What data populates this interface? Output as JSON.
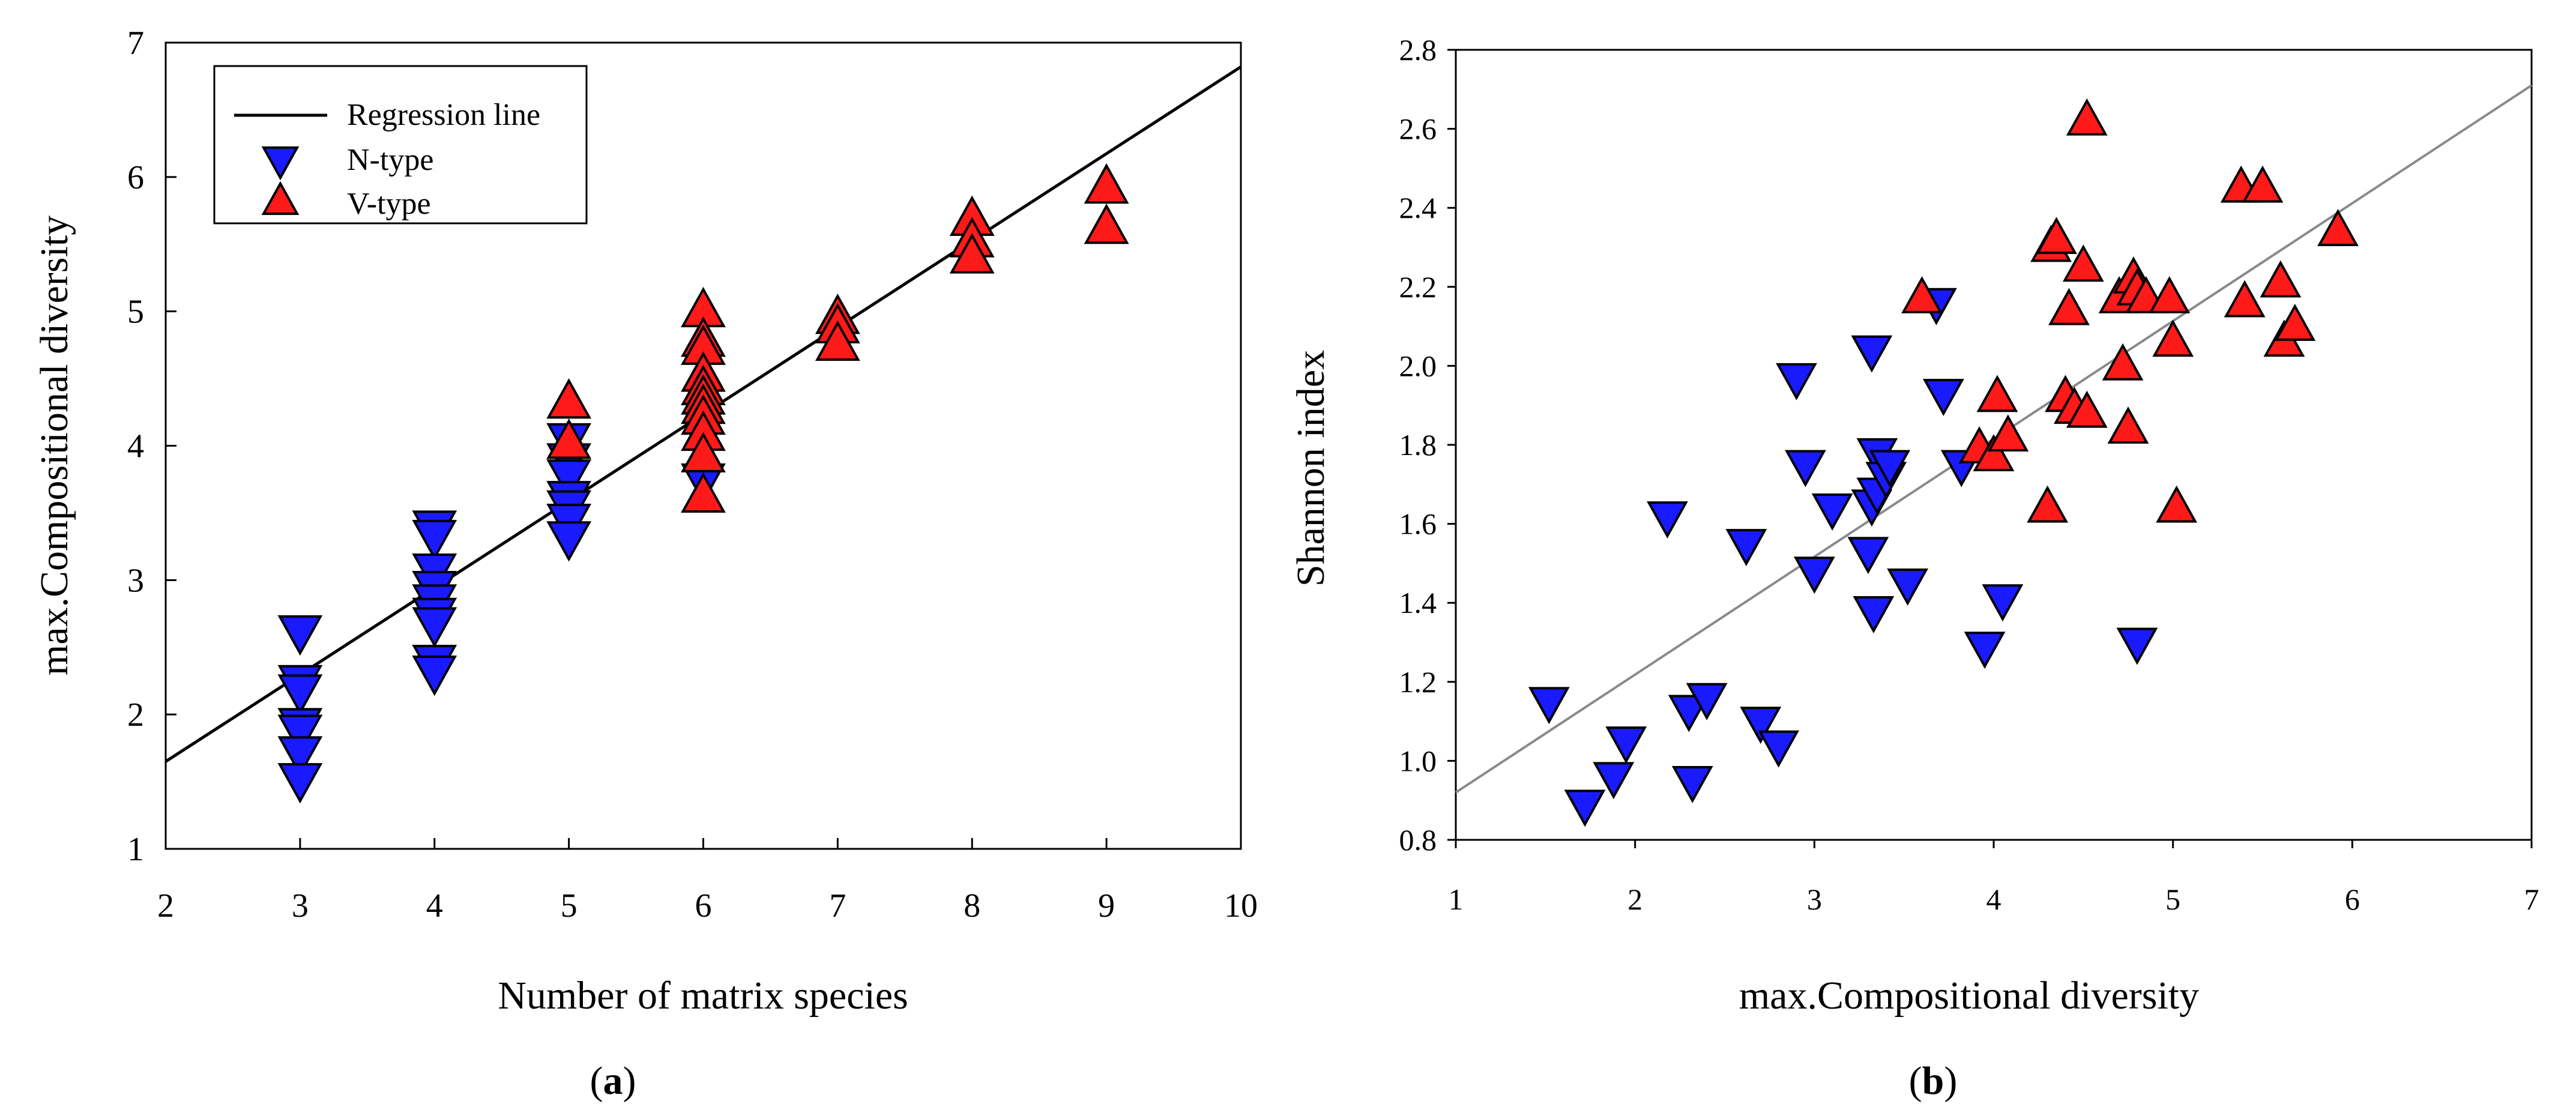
{
  "colors": {
    "n_type": "#1a1aff",
    "v_type": "#ff1a1a",
    "regression_a": "#000000",
    "regression_b": "#8a8a8a"
  },
  "chart_data": [
    {
      "type": "scatter",
      "panel_label": "a",
      "xlabel": "Number of matrix species",
      "ylabel": "max.Compositional diversity",
      "xlim": [
        2,
        10
      ],
      "ylim": [
        1,
        7
      ],
      "xticks": [
        2,
        3,
        4,
        5,
        6,
        7,
        8,
        9,
        10
      ],
      "yticks": [
        1,
        2,
        3,
        4,
        5,
        6,
        7
      ],
      "legend": {
        "placement": "top-left",
        "items": [
          "Regression line",
          "N-type",
          "V-type"
        ]
      },
      "regression": {
        "name": "Regression line",
        "x": [
          2,
          10
        ],
        "y": [
          1.65,
          6.82
        ]
      },
      "series": [
        {
          "name": "N-type",
          "marker": "triangle-down",
          "x": [
            3,
            3,
            3,
            3,
            3,
            3,
            3,
            4,
            4,
            4,
            4,
            4,
            4,
            4,
            4,
            4,
            5,
            5,
            5,
            5,
            5,
            5,
            5,
            6
          ],
          "y": [
            2.62,
            2.25,
            2.18,
            1.93,
            1.88,
            1.72,
            1.52,
            3.4,
            3.33,
            3.08,
            2.95,
            2.85,
            2.75,
            2.68,
            2.4,
            2.32,
            4.05,
            3.9,
            3.78,
            3.62,
            3.55,
            3.45,
            3.32,
            3.75
          ]
        },
        {
          "name": "V-type",
          "marker": "triangle-up",
          "x": [
            5,
            5,
            6,
            6,
            6,
            6,
            6,
            6,
            6,
            6,
            6,
            6,
            6,
            7,
            7,
            7,
            8,
            8,
            8,
            9,
            9
          ],
          "y": [
            4.32,
            4.02,
            5.0,
            4.78,
            4.72,
            4.52,
            4.42,
            4.35,
            4.28,
            4.2,
            4.08,
            3.92,
            3.62,
            4.95,
            4.88,
            4.75,
            5.68,
            5.52,
            5.4,
            5.92,
            5.62
          ]
        }
      ]
    },
    {
      "type": "scatter",
      "panel_label": "b",
      "xlabel": "max.Compositional diversity",
      "ylabel": "Shannon index",
      "xlim": [
        1,
        7
      ],
      "ylim": [
        0.8,
        2.8
      ],
      "xticks": [
        1,
        2,
        3,
        4,
        5,
        6,
        7
      ],
      "yticks": [
        "0.8",
        "1.0",
        "1.2",
        "1.4",
        "1.6",
        "1.8",
        "2.0",
        "2.2",
        "2.4",
        "2.6",
        "2.8"
      ],
      "regression": {
        "x": [
          1,
          7
        ],
        "y": [
          0.92,
          2.71
        ]
      },
      "series": [
        {
          "name": "N-type",
          "marker": "triangle-down",
          "x": [
            1.52,
            1.72,
            1.88,
            1.95,
            2.18,
            2.3,
            2.32,
            2.4,
            2.62,
            2.7,
            2.8,
            2.9,
            2.95,
            3.0,
            3.1,
            3.3,
            3.32,
            3.32,
            3.33,
            3.35,
            3.35,
            3.4,
            3.42,
            3.52,
            3.68,
            3.72,
            3.82,
            3.95,
            4.05,
            4.8
          ],
          "y": [
            1.15,
            0.89,
            0.96,
            1.05,
            1.62,
            1.13,
            0.95,
            1.16,
            1.55,
            1.1,
            1.04,
            1.97,
            1.75,
            1.48,
            1.64,
            1.53,
            1.65,
            2.04,
            1.38,
            1.78,
            1.68,
            1.72,
            1.75,
            1.45,
            2.16,
            1.93,
            1.75,
            1.29,
            1.41,
            1.3
          ]
        },
        {
          "name": "V-type",
          "marker": "triangle-up",
          "x": [
            3.6,
            3.92,
            4.0,
            4.02,
            4.08,
            4.3,
            4.32,
            4.35,
            4.4,
            4.42,
            4.45,
            4.5,
            4.52,
            4.52,
            4.7,
            4.72,
            4.75,
            4.78,
            4.8,
            4.85,
            4.98,
            5.0,
            5.02,
            5.38,
            5.4,
            5.5,
            5.6,
            5.62,
            5.68,
            5.92
          ],
          "y": [
            2.17,
            1.79,
            1.77,
            1.92,
            1.82,
            1.64,
            2.3,
            2.32,
            1.92,
            2.14,
            1.89,
            2.25,
            1.88,
            2.62,
            2.17,
            2.0,
            1.84,
            2.22,
            2.19,
            2.17,
            2.17,
            2.06,
            1.64,
            2.45,
            2.16,
            2.45,
            2.21,
            2.06,
            2.1,
            2.34
          ]
        }
      ]
    }
  ]
}
